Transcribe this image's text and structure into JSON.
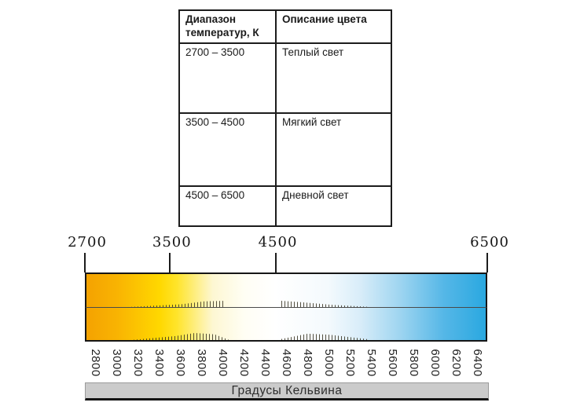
{
  "table": {
    "headers": {
      "range": "Диапазон\nтемператур, К",
      "description": "Описание цвета"
    },
    "rows": [
      {
        "range": "2700 – 3500",
        "description": "Теплый свет"
      },
      {
        "range": "3500 – 4500",
        "description": "Мягкий свет"
      },
      {
        "range": "4500 – 6500",
        "description": "Дневной свет"
      }
    ]
  },
  "scale": {
    "axis_title": "Градусы Кельвина",
    "unit": "K",
    "min_k": 2700,
    "max_k": 6500,
    "major_ticks": [
      {
        "k": 2700,
        "label": "2700"
      },
      {
        "k": 3500,
        "label": "3500"
      },
      {
        "k": 4500,
        "label": "4500"
      },
      {
        "k": 6500,
        "label": "6500"
      }
    ],
    "minor_ticks": [
      2800,
      3000,
      3200,
      3400,
      3600,
      3800,
      4000,
      4200,
      4400,
      4600,
      4800,
      5000,
      5200,
      5400,
      5600,
      5800,
      6000,
      6200,
      6400
    ],
    "gradient_stops": [
      {
        "k": 2700,
        "color": "#f4a201"
      },
      {
        "k": 3000,
        "color": "#f9b402"
      },
      {
        "k": 3400,
        "color": "#ffd800"
      },
      {
        "k": 3560,
        "color": "#ffe42a"
      },
      {
        "k": 3900,
        "color": "#fdf7d2"
      },
      {
        "k": 4200,
        "color": "#fffef4"
      },
      {
        "k": 4500,
        "color": "#ffffff"
      },
      {
        "k": 5000,
        "color": "#f4fafd"
      },
      {
        "k": 5300,
        "color": "#d9edf9"
      },
      {
        "k": 5700,
        "color": "#9cd4f0"
      },
      {
        "k": 6100,
        "color": "#55b7e7"
      },
      {
        "k": 6500,
        "color": "#2aa8e0"
      }
    ]
  }
}
